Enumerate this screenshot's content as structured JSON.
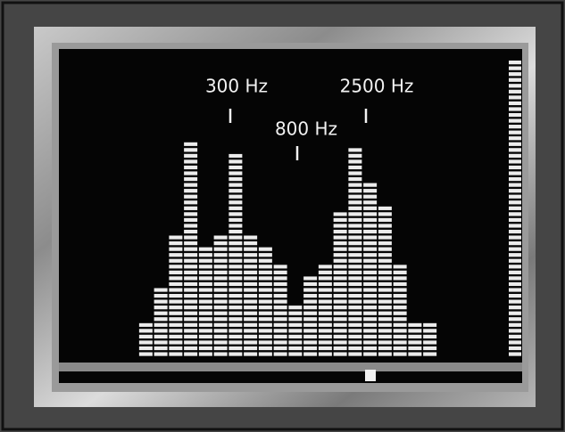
{
  "chart_data": {
    "type": "bar",
    "categories": [
      null,
      null,
      null,
      null,
      null,
      null,
      null,
      null,
      null,
      null,
      null,
      null,
      null,
      null,
      null,
      null,
      null,
      null,
      null,
      null
    ],
    "values": [
      6,
      12,
      21,
      37,
      19,
      21,
      35,
      21,
      19,
      16,
      9,
      14,
      16,
      25,
      36,
      30,
      26,
      16,
      6,
      6
    ],
    "color": "#e8e8e8",
    "ylim": [
      0,
      51
    ],
    "annotations": [
      {
        "text": "300 Hz"
      },
      {
        "text": "800 Hz"
      },
      {
        "text": "2500 Hz"
      }
    ]
  }
}
